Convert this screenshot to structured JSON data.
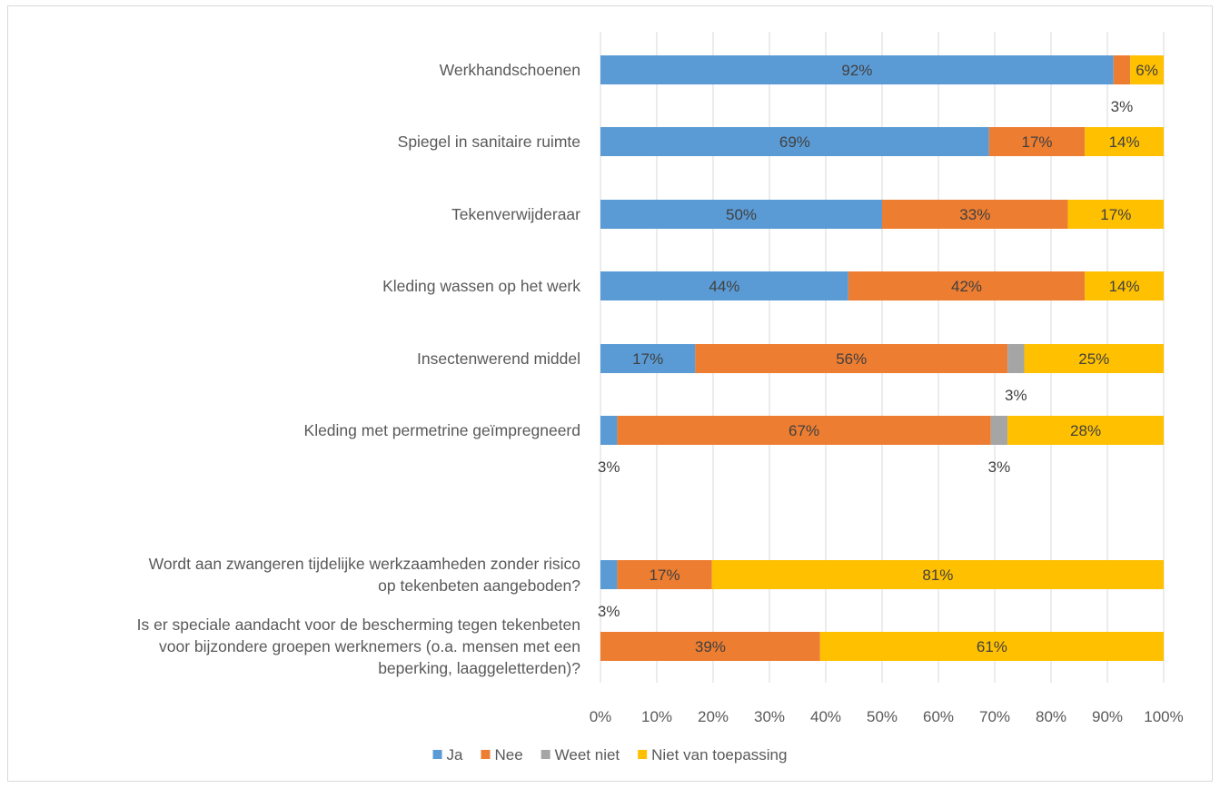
{
  "chart_data": {
    "type": "bar",
    "orientation": "horizontal",
    "stacked": "percent",
    "categories": [
      "Werkhandschoenen",
      "Spiegel in sanitaire ruimte",
      "Tekenverwijderaar",
      "Kleding wassen op het werk",
      "Insectenwerend middel",
      "Kleding met permetrine geïmpregneerd",
      "",
      "Wordt aan zwangeren tijdelijke werkzaamheden zonder risico op tekenbeten aangeboden?",
      "Is er speciale aandacht voor de bescherming tegen tekenbeten voor bijzondere groepen werknemers (o.a. mensen met een beperking, laaggeletterden)?"
    ],
    "category_label_lines": [
      [
        "Werkhandschoenen"
      ],
      [
        "Spiegel in sanitaire ruimte"
      ],
      [
        "Tekenverwijderaar"
      ],
      [
        "Kleding wassen op het werk"
      ],
      [
        "Insectenwerend middel"
      ],
      [
        "Kleding met permetrine geïmpregneerd"
      ],
      [],
      [
        "Wordt aan zwangeren tijdelijke werkzaamheden zonder risico",
        "op tekenbeten aangeboden?"
      ],
      [
        "Is er speciale aandacht voor de bescherming tegen tekenbeten",
        "voor bijzondere groepen werknemers (o.a. mensen met een",
        "beperking, laaggeletterden)?"
      ]
    ],
    "series": [
      {
        "name": "Ja",
        "color": "#5B9BD5",
        "values": [
          92,
          69,
          50,
          44,
          17,
          3,
          null,
          3,
          0
        ]
      },
      {
        "name": "Nee",
        "color": "#ED7D31",
        "values": [
          3,
          17,
          33,
          42,
          56,
          67,
          null,
          17,
          39
        ]
      },
      {
        "name": "Weet niet",
        "color": "#A5A5A5",
        "values": [
          0,
          0,
          0,
          0,
          3,
          3,
          null,
          0,
          0
        ]
      },
      {
        "name": "Niet van toepassing",
        "color": "#FFC000",
        "values": [
          6,
          14,
          17,
          14,
          25,
          28,
          null,
          81,
          61
        ]
      }
    ],
    "data_labels": [
      [
        "92%",
        "3%",
        "",
        "6%"
      ],
      [
        "69%",
        "17%",
        "",
        "14%"
      ],
      [
        "50%",
        "33%",
        "",
        "17%"
      ],
      [
        "44%",
        "42%",
        "",
        "14%"
      ],
      [
        "17%",
        "56%",
        "3%",
        "25%"
      ],
      [
        "3%",
        "67%",
        "3%",
        "28%"
      ],
      [
        "",
        "",
        "",
        ""
      ],
      [
        "3%",
        "17%",
        "",
        "81%"
      ],
      [
        "",
        "39%",
        "",
        "61%"
      ]
    ],
    "x_ticks": [
      "0%",
      "10%",
      "20%",
      "30%",
      "40%",
      "50%",
      "60%",
      "70%",
      "80%",
      "90%",
      "100%"
    ],
    "xlim": [
      0,
      100
    ],
    "grid": true,
    "legend_position": "bottom",
    "title": "",
    "xlabel": "",
    "ylabel": ""
  }
}
